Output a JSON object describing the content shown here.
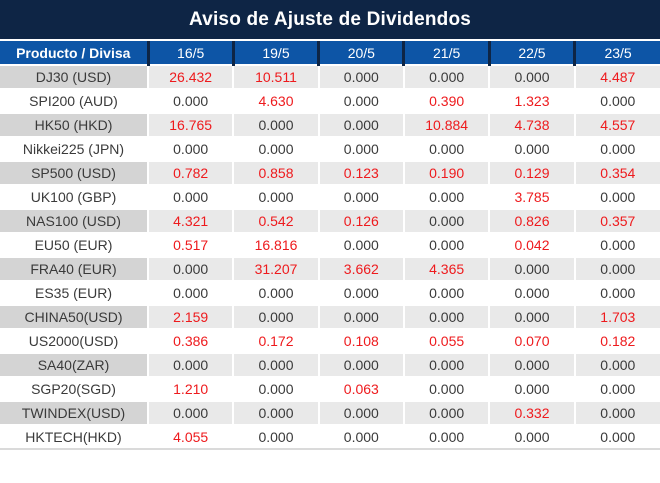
{
  "colors": {
    "title_bg": "#0e2545",
    "header_bg": "#0d55a6",
    "header_divider": "#0e2545",
    "alt_row_bg": "#e9e9e9",
    "alt_product_cell_bg": "#d4d4d4",
    "positive_value_text": "#ee1a1d",
    "zero_value_text": "#3a3a3a"
  },
  "chart_data": {
    "type": "table",
    "title": "Aviso de Ajuste de Dividendos",
    "columns": [
      "Producto / Divisa",
      "16/5",
      "19/5",
      "20/5",
      "21/5",
      "22/5",
      "23/5"
    ],
    "rows": [
      {
        "product": "DJ30 (USD)",
        "values": [
          "26.432",
          "10.511",
          "0.000",
          "0.000",
          "0.000",
          "4.487"
        ]
      },
      {
        "product": "SPI200 (AUD)",
        "values": [
          "0.000",
          "4.630",
          "0.000",
          "0.390",
          "1.323",
          "0.000"
        ]
      },
      {
        "product": "HK50 (HKD)",
        "values": [
          "16.765",
          "0.000",
          "0.000",
          "10.884",
          "4.738",
          "4.557"
        ]
      },
      {
        "product": "Nikkei225 (JPN)",
        "values": [
          "0.000",
          "0.000",
          "0.000",
          "0.000",
          "0.000",
          "0.000"
        ]
      },
      {
        "product": "SP500 (USD)",
        "values": [
          "0.782",
          "0.858",
          "0.123",
          "0.190",
          "0.129",
          "0.354"
        ]
      },
      {
        "product": "UK100 (GBP)",
        "values": [
          "0.000",
          "0.000",
          "0.000",
          "0.000",
          "3.785",
          "0.000"
        ]
      },
      {
        "product": "NAS100 (USD)",
        "values": [
          "4.321",
          "0.542",
          "0.126",
          "0.000",
          "0.826",
          "0.357"
        ]
      },
      {
        "product": "EU50 (EUR)",
        "values": [
          "0.517",
          "16.816",
          "0.000",
          "0.000",
          "0.042",
          "0.000"
        ]
      },
      {
        "product": "FRA40 (EUR)",
        "values": [
          "0.000",
          "31.207",
          "3.662",
          "4.365",
          "0.000",
          "0.000"
        ]
      },
      {
        "product": "ES35 (EUR)",
        "values": [
          "0.000",
          "0.000",
          "0.000",
          "0.000",
          "0.000",
          "0.000"
        ]
      },
      {
        "product": "CHINA50(USD)",
        "values": [
          "2.159",
          "0.000",
          "0.000",
          "0.000",
          "0.000",
          "1.703"
        ]
      },
      {
        "product": "US2000(USD)",
        "values": [
          "0.386",
          "0.172",
          "0.108",
          "0.055",
          "0.070",
          "0.182"
        ]
      },
      {
        "product": "SA40(ZAR)",
        "values": [
          "0.000",
          "0.000",
          "0.000",
          "0.000",
          "0.000",
          "0.000"
        ]
      },
      {
        "product": "SGP20(SGD)",
        "values": [
          "1.210",
          "0.000",
          "0.063",
          "0.000",
          "0.000",
          "0.000"
        ]
      },
      {
        "product": "TWINDEX(USD)",
        "values": [
          "0.000",
          "0.000",
          "0.000",
          "0.000",
          "0.332",
          "0.000"
        ]
      },
      {
        "product": "HKTECH(HKD)",
        "values": [
          "4.055",
          "0.000",
          "0.000",
          "0.000",
          "0.000",
          "0.000"
        ]
      }
    ]
  }
}
